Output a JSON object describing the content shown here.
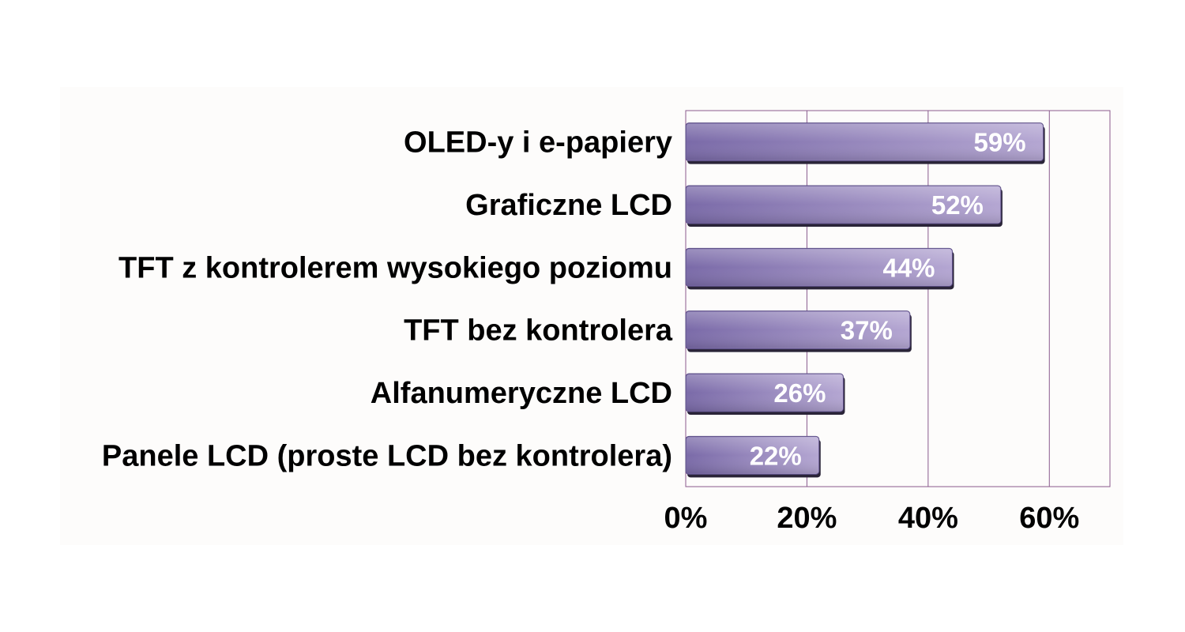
{
  "chart_data": {
    "type": "bar",
    "orientation": "horizontal",
    "categories": [
      "OLED-y i e-papiery",
      "Graficzne LCD",
      "TFT z kontrolerem wysokiego poziomu",
      "TFT bez kontrolera",
      "Alfanumeryczne LCD",
      "Panele LCD (proste LCD bez kontrolera)"
    ],
    "values": [
      59,
      52,
      44,
      37,
      26,
      22
    ],
    "value_labels": [
      "59%",
      "52%",
      "44%",
      "37%",
      "26%",
      "22%"
    ],
    "title": "",
    "xlabel": "",
    "ylabel": "",
    "xlim": [
      0,
      70
    ],
    "x_ticks": [
      0,
      20,
      40,
      60
    ],
    "x_tick_labels": [
      "0%",
      "20%",
      "40%",
      "60%"
    ],
    "grid": true,
    "legend": "none",
    "colors": {
      "bar_light": "#b4a6d2",
      "bar_dark": "#7a6aa8",
      "bar_shadow": "#2a2438",
      "grid": "#8a5a8e",
      "plot_background": "#fdfcfb"
    }
  }
}
